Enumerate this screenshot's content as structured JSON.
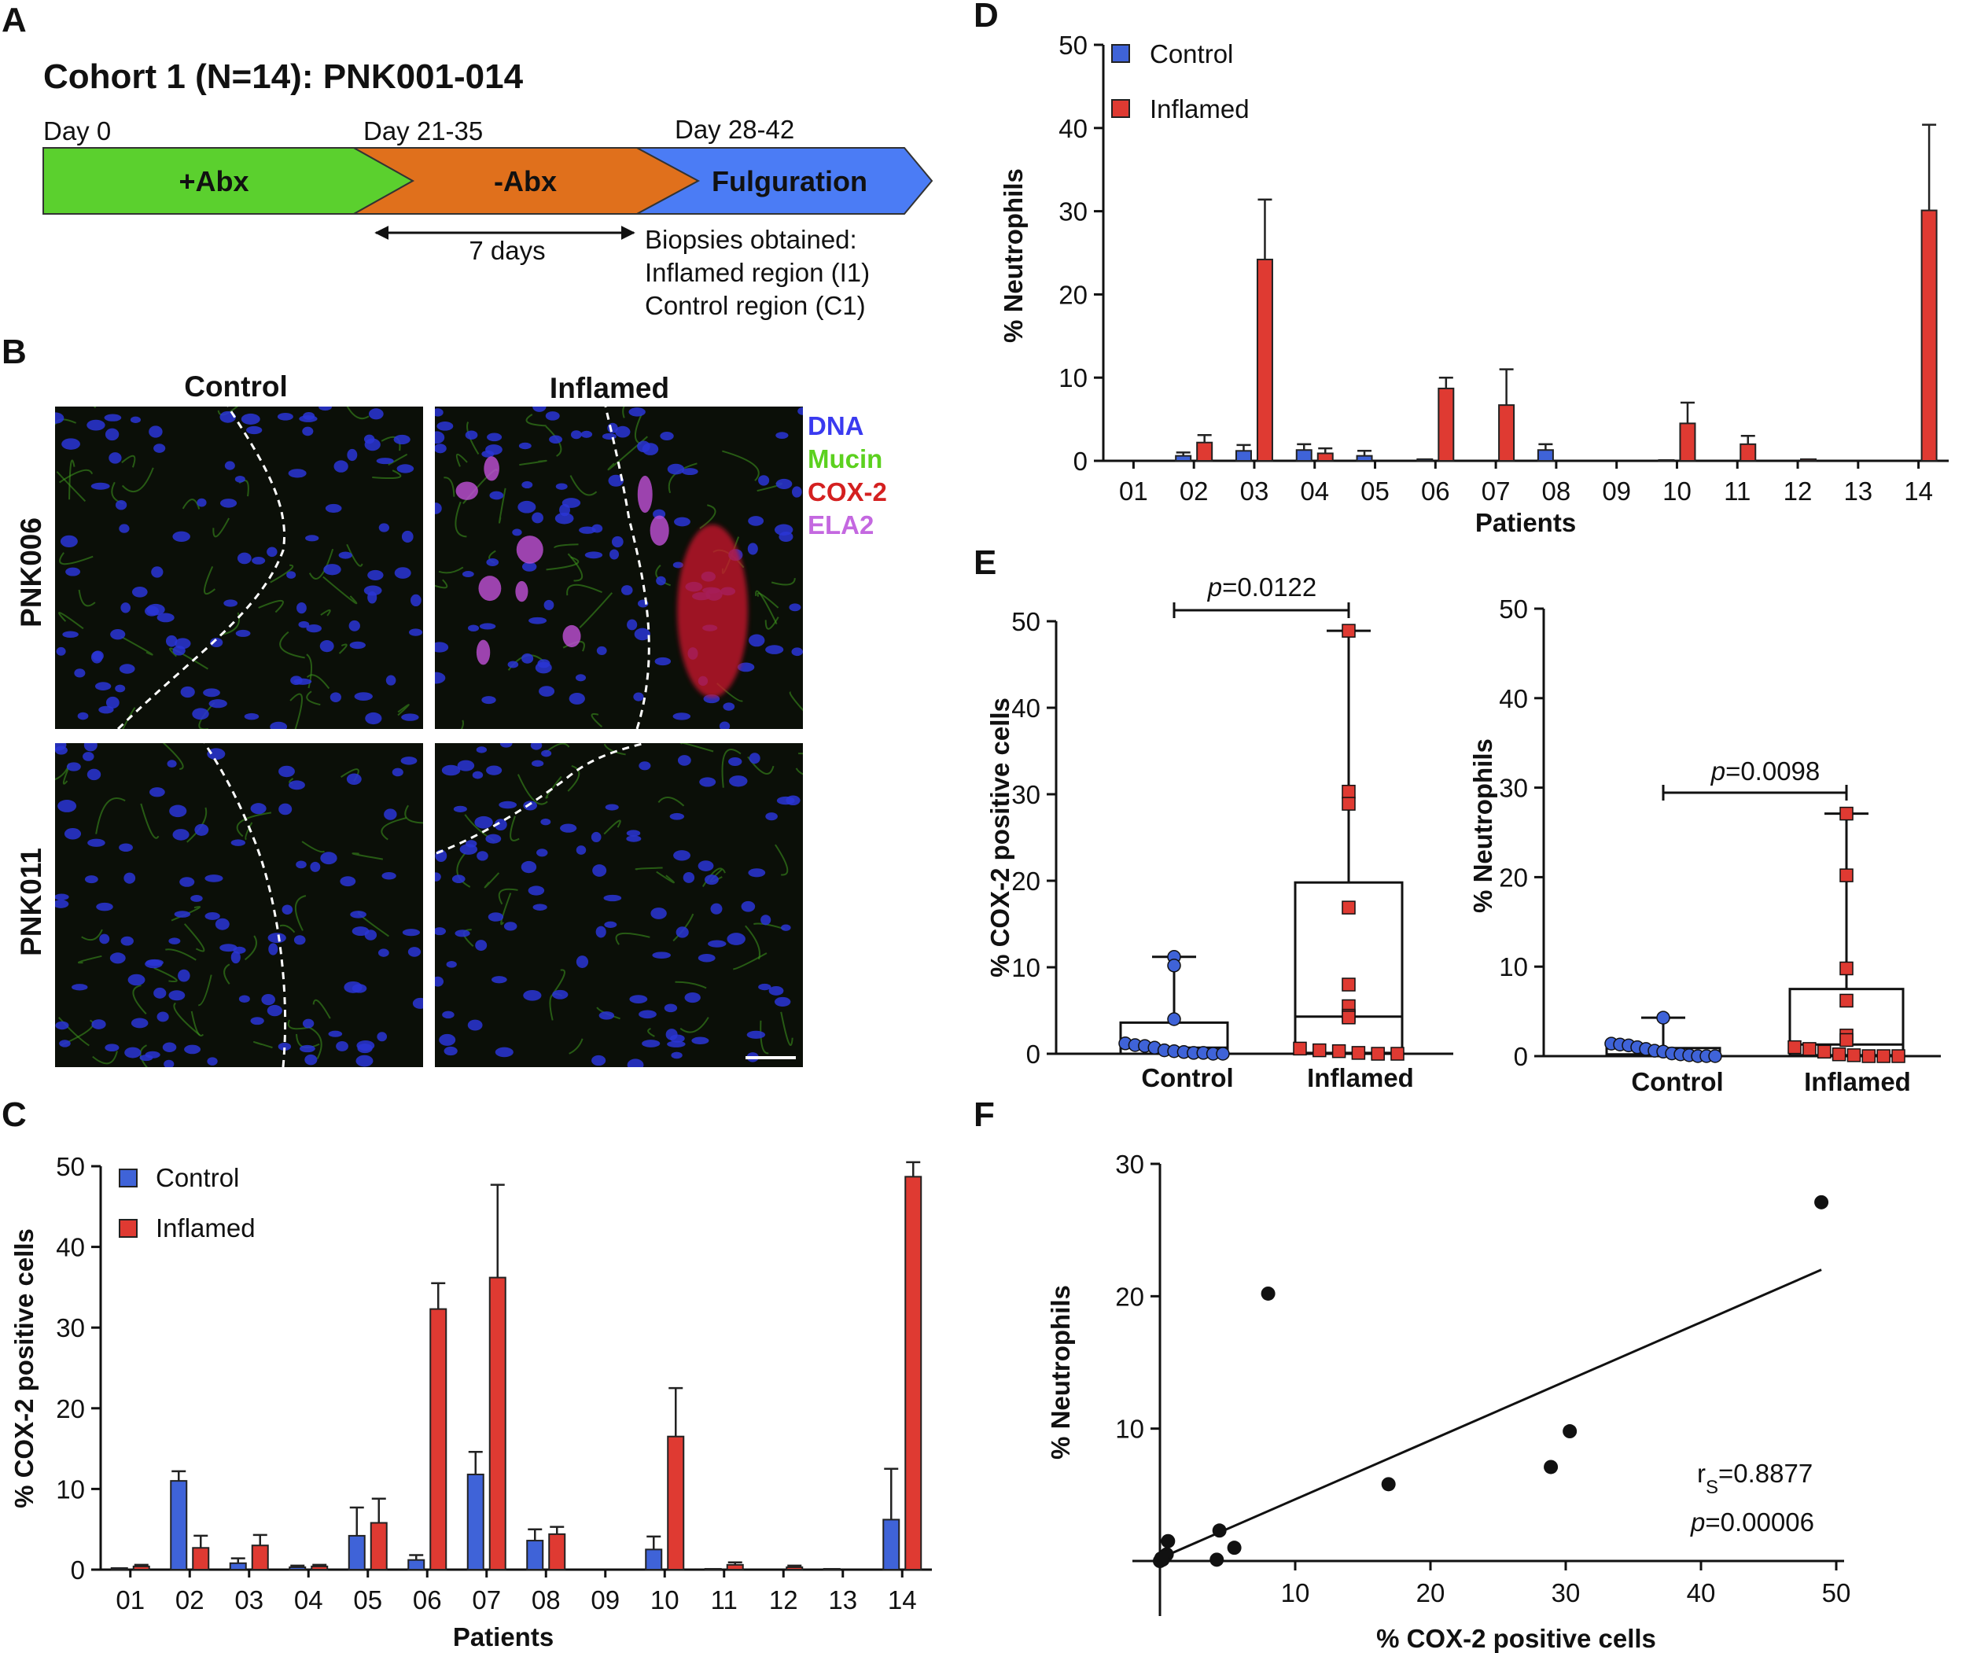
{
  "panel_labels": {
    "a": "A",
    "b": "B",
    "c": "C",
    "d": "D",
    "e": "E",
    "f": "F"
  },
  "timeline": {
    "title": "Cohort 1 (N=14): PNK001-014",
    "days": [
      "Day 0",
      "Day 21-35",
      "Day 28-42"
    ],
    "stages": [
      {
        "label": "+Abx",
        "color": "#5bd02e"
      },
      {
        "label": "-Abx",
        "color": "#e0701c"
      },
      {
        "label": "Fulguration",
        "color": "#4b7cf5"
      }
    ],
    "interval": "7 days",
    "biopsy_lines": [
      "Biopsies obtained:",
      "Inflamed region (I1)",
      "Control region (C1)"
    ]
  },
  "micrographs": {
    "col_headers": [
      "Control",
      "Inflamed"
    ],
    "row_labels": [
      "PNK006",
      "PNK011"
    ],
    "stains": [
      {
        "name": "DNA",
        "color": "#3a3af0"
      },
      {
        "name": "Mucin",
        "color": "#5cd11f"
      },
      {
        "name": "COX-2",
        "color": "#d42020"
      },
      {
        "name": "ELA2",
        "color": "#c468e0"
      }
    ]
  },
  "chart_data": [
    {
      "panel": "C",
      "type": "bar",
      "categories": [
        "01",
        "02",
        "03",
        "04",
        "05",
        "06",
        "07",
        "08",
        "09",
        "10",
        "11",
        "12",
        "13",
        "14"
      ],
      "series": [
        {
          "name": "Control",
          "color": "#3f63d8",
          "values": [
            0.2,
            11.0,
            0.8,
            0.3,
            4.2,
            1.2,
            11.8,
            3.6,
            0,
            2.5,
            0.1,
            0,
            0.1,
            6.2
          ],
          "errors": [
            0,
            1.2,
            0.6,
            0.2,
            3.5,
            0.6,
            2.8,
            1.4,
            0,
            1.6,
            0,
            0,
            0,
            6.3
          ]
        },
        {
          "name": "Inflamed",
          "color": "#df3a32",
          "values": [
            0.4,
            2.7,
            3.0,
            0.4,
            5.8,
            32.3,
            36.2,
            4.4,
            0,
            16.5,
            0.6,
            0.3,
            0,
            48.7
          ],
          "errors": [
            0.2,
            1.5,
            1.3,
            0.2,
            3.0,
            3.2,
            11.5,
            0.9,
            0,
            6.0,
            0.3,
            0.2,
            0,
            1.8
          ]
        }
      ],
      "xlabel": "Patients",
      "ylabel": "% COX-2 positive cells",
      "ylim": [
        0,
        50
      ],
      "yticks": [
        "0",
        "10",
        "20",
        "30",
        "40",
        "50"
      ],
      "legend": "top-left"
    },
    {
      "panel": "D",
      "type": "bar",
      "categories": [
        "01",
        "02",
        "03",
        "04",
        "05",
        "06",
        "07",
        "08",
        "09",
        "10",
        "11",
        "12",
        "13",
        "14"
      ],
      "series": [
        {
          "name": "Control",
          "color": "#3f63d8",
          "values": [
            0,
            0.6,
            1.2,
            1.3,
            0.6,
            0.2,
            0,
            1.3,
            0,
            0.1,
            0,
            0,
            0,
            0
          ],
          "errors": [
            0,
            0.4,
            0.7,
            0.7,
            0.6,
            0,
            0,
            0.7,
            0,
            0,
            0,
            0,
            0,
            0
          ]
        },
        {
          "name": "Inflamed",
          "color": "#df3a32",
          "values": [
            0,
            2.2,
            24.2,
            0.9,
            0,
            8.7,
            6.7,
            0,
            0,
            4.5,
            2.0,
            0.2,
            0,
            30.1
          ],
          "errors": [
            0,
            0.9,
            7.2,
            0.6,
            0,
            1.3,
            4.3,
            0,
            0,
            2.5,
            1.0,
            0,
            0,
            10.3
          ]
        }
      ],
      "xlabel": "Patients",
      "ylabel": "% Neutrophils",
      "ylim": [
        0,
        50
      ],
      "yticks": [
        "0",
        "10",
        "20",
        "30",
        "40",
        "50"
      ],
      "legend": "top-left"
    },
    {
      "panel": "E-left",
      "type": "box",
      "categories": [
        "Control",
        "Inflamed"
      ],
      "groups": [
        {
          "name": "Control",
          "color": "#3f63d8",
          "marker": "circle",
          "box": [
            0,
            0.7,
            3.6
          ],
          "whisker": [
            0,
            11.2
          ],
          "points": [
            11.2,
            10.2,
            4.0,
            1.2,
            1.0,
            0.9,
            0.7,
            0.4,
            0.3,
            0.2,
            0.1,
            0.1,
            0,
            0
          ]
        },
        {
          "name": "Inflamed",
          "color": "#df3a32",
          "marker": "square",
          "box": [
            0.1,
            4.3,
            19.8
          ],
          "whisker": [
            0,
            48.9
          ],
          "points": [
            48.9,
            30.3,
            28.9,
            16.9,
            8.0,
            5.5,
            4.4,
            4.2,
            0.6,
            0.4,
            0.3,
            0.1,
            0,
            0
          ]
        }
      ],
      "ylabel": "% COX-2 positive cells",
      "ylim": [
        0,
        50
      ],
      "yticks": [
        "0",
        "10",
        "20",
        "30",
        "40",
        "50"
      ],
      "pvalue": {
        "prefix": "p",
        "value": "=0.0122"
      }
    },
    {
      "panel": "E-right",
      "type": "box",
      "categories": [
        "Control",
        "Inflamed"
      ],
      "groups": [
        {
          "name": "Control",
          "color": "#3f63d8",
          "marker": "circle",
          "box": [
            0,
            0.2,
            0.9
          ],
          "whisker": [
            0,
            4.3
          ],
          "points": [
            4.3,
            1.4,
            1.3,
            1.2,
            1.0,
            0.8,
            0.6,
            0.5,
            0.3,
            0.2,
            0.1,
            0,
            0,
            0
          ]
        },
        {
          "name": "Inflamed",
          "color": "#df3a32",
          "marker": "square",
          "box": [
            0.1,
            1.3,
            7.5
          ],
          "whisker": [
            0,
            27.1
          ],
          "points": [
            27.1,
            20.2,
            9.8,
            6.2,
            2.3,
            1.8,
            1.0,
            0.8,
            0.5,
            0.2,
            0.1,
            0,
            0,
            0
          ]
        }
      ],
      "ylabel": "% Neutrophils",
      "ylim": [
        0,
        50
      ],
      "yticks": [
        "0",
        "10",
        "20",
        "30",
        "40",
        "50"
      ],
      "pvalue": {
        "prefix": "p",
        "value": "=0.0098"
      }
    },
    {
      "panel": "F",
      "type": "scatter",
      "x": [
        48.9,
        8.0,
        30.3,
        28.9,
        16.9,
        4.4,
        5.5,
        4.2,
        0.6,
        0.5,
        0.3,
        0.2,
        0,
        0.1
      ],
      "y": [
        27.1,
        20.2,
        9.8,
        7.1,
        5.8,
        2.3,
        1.0,
        0.1,
        1.5,
        0.5,
        0.3,
        0.1,
        0,
        0.2
      ],
      "fit_line": {
        "x": [
          0,
          48.9
        ],
        "y": [
          0.2,
          22.0
        ]
      },
      "xlabel": "% COX-2 positive cells",
      "ylabel": "% Neutrophils",
      "xlim": [
        0,
        50
      ],
      "ylim": [
        0,
        30
      ],
      "xticks": [
        "10",
        "20",
        "30",
        "40",
        "50"
      ],
      "yticks": [
        "10",
        "20",
        "30"
      ],
      "stats": {
        "rs": "=0.8877",
        "p": "=0.00006"
      }
    }
  ]
}
